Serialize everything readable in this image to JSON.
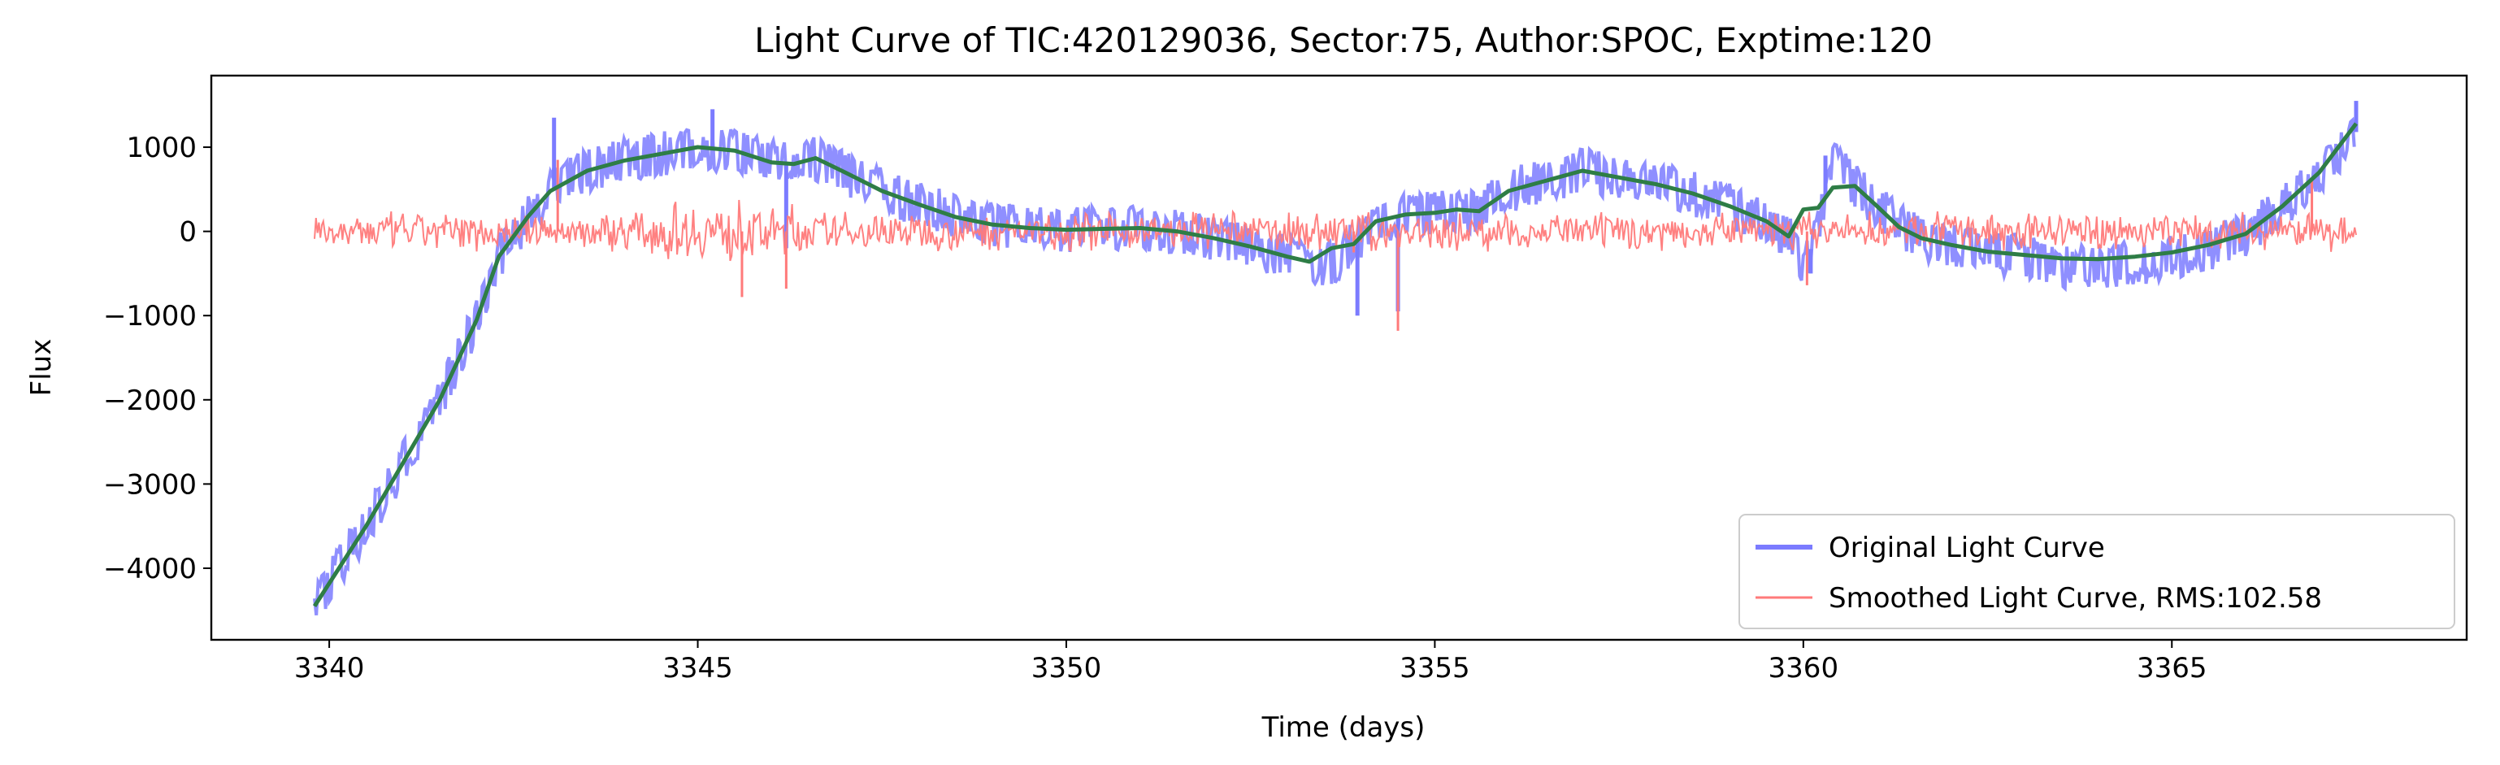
{
  "chart_data": {
    "type": "line",
    "title": "Light Curve of TIC:420129036, Sector:75, Author:SPOC, Exptime:120",
    "xlabel": "Time (days)",
    "ylabel": "Flux",
    "xlim": [
      3338.4,
      3369.0
    ],
    "ylim": [
      -4850,
      1850
    ],
    "x_ticks": [
      3340,
      3345,
      3350,
      3355,
      3360,
      3365
    ],
    "x_tick_labels": [
      "3340",
      "3345",
      "3350",
      "3355",
      "3360",
      "3365"
    ],
    "y_ticks": [
      1000,
      0,
      -1000,
      -2000,
      -3000,
      -4000
    ],
    "y_tick_labels": [
      "1000",
      "0",
      "−1000",
      "−2000",
      "−3000",
      "−4000"
    ],
    "grid": false,
    "legend_position": "lower-right",
    "series": [
      {
        "name": "Original Light Curve",
        "color": "#7b7bff",
        "style": "band",
        "x": [
          3339.8,
          3340.5,
          3341.0,
          3341.5,
          3342.0,
          3342.3,
          3342.7,
          3343.0,
          3343.5,
          3344.0,
          3344.5,
          3345.0,
          3345.5,
          3346.0,
          3346.3,
          3346.6,
          3347.0,
          3347.5,
          3348.0,
          3348.5,
          3349.0,
          3349.5,
          3350.0,
          3350.5,
          3351.0,
          3351.5,
          3352.0,
          3352.5,
          3353.0,
          3353.3,
          3353.6,
          3353.9,
          3354.2,
          3354.6,
          3355.0,
          3355.3,
          3355.6,
          3356.0,
          3356.5,
          3357.0,
          3357.5,
          3358.0,
          3358.5,
          3359.0,
          3359.5,
          3359.8,
          3360.0,
          3360.2,
          3360.4,
          3360.7,
          3361.0,
          3361.3,
          3361.6,
          3362.0,
          3362.5,
          3363.0,
          3363.5,
          3364.0,
          3364.5,
          3365.0,
          3365.5,
          3366.0,
          3366.5,
          3367.0,
          3367.5
        ],
        "y": [
          -4450,
          -3500,
          -2750,
          -2000,
          -1050,
          -300,
          180,
          480,
          720,
          840,
          920,
          1000,
          960,
          820,
          800,
          870,
          700,
          480,
          320,
          170,
          80,
          40,
          20,
          30,
          40,
          0,
          -80,
          -180,
          -300,
          -420,
          -380,
          -150,
          120,
          200,
          220,
          260,
          240,
          480,
          600,
          720,
          640,
          560,
          450,
          300,
          120,
          -60,
          -420,
          0,
          820,
          540,
          300,
          50,
          -80,
          -160,
          -240,
          -320,
          -420,
          -430,
          -380,
          -300,
          -200,
          -30,
          300,
          700,
          1180
        ],
        "spikes": [
          [
            3343.05,
            1350
          ],
          [
            3345.2,
            1450
          ],
          [
            3346.2,
            -200
          ],
          [
            3353.95,
            -1000
          ],
          [
            3354.5,
            -950
          ],
          [
            3360.1,
            -500
          ],
          [
            3360.3,
            900
          ],
          [
            3367.5,
            1550
          ]
        ]
      },
      {
        "name": "Smoothed Light Curve, RMS:102.58",
        "color": "#ff7a7a",
        "style": "noise",
        "baseline": 0,
        "spikes": [
          [
            3343.1,
            850
          ],
          [
            3345.6,
            -780
          ],
          [
            3346.2,
            -680
          ],
          [
            3353.9,
            -250
          ],
          [
            3354.5,
            -1180
          ],
          [
            3360.05,
            -640
          ],
          [
            3366.9,
            620
          ]
        ]
      },
      {
        "name": "",
        "color": "#2e7d46",
        "style": "line",
        "x": [
          3339.8,
          3340.5,
          3341.0,
          3341.5,
          3342.0,
          3342.3,
          3342.7,
          3343.0,
          3343.5,
          3344.0,
          3344.5,
          3345.0,
          3345.5,
          3346.0,
          3346.3,
          3346.6,
          3347.0,
          3347.5,
          3348.0,
          3348.5,
          3349.0,
          3349.5,
          3350.0,
          3350.5,
          3351.0,
          3351.5,
          3352.0,
          3352.5,
          3353.0,
          3353.3,
          3353.6,
          3353.9,
          3354.2,
          3354.6,
          3355.0,
          3355.3,
          3355.6,
          3356.0,
          3356.5,
          3357.0,
          3357.5,
          3358.0,
          3358.5,
          3359.0,
          3359.5,
          3359.8,
          3360.0,
          3360.2,
          3360.4,
          3360.7,
          3361.0,
          3361.3,
          3361.6,
          3362.0,
          3362.5,
          3363.0,
          3363.5,
          3364.0,
          3364.5,
          3365.0,
          3365.5,
          3366.0,
          3366.5,
          3367.0,
          3367.5
        ],
        "y": [
          -4450,
          -3500,
          -2750,
          -2000,
          -1050,
          -300,
          180,
          480,
          720,
          840,
          920,
          1000,
          960,
          820,
          800,
          870,
          700,
          480,
          320,
          170,
          80,
          40,
          20,
          30,
          40,
          0,
          -80,
          -180,
          -300,
          -360,
          -200,
          -150,
          120,
          200,
          220,
          260,
          240,
          480,
          600,
          720,
          640,
          560,
          450,
          300,
          120,
          -60,
          260,
          280,
          520,
          540,
          300,
          50,
          -80,
          -160,
          -240,
          -280,
          -320,
          -330,
          -300,
          -250,
          -160,
          -30,
          300,
          700,
          1280
        ]
      }
    ]
  }
}
